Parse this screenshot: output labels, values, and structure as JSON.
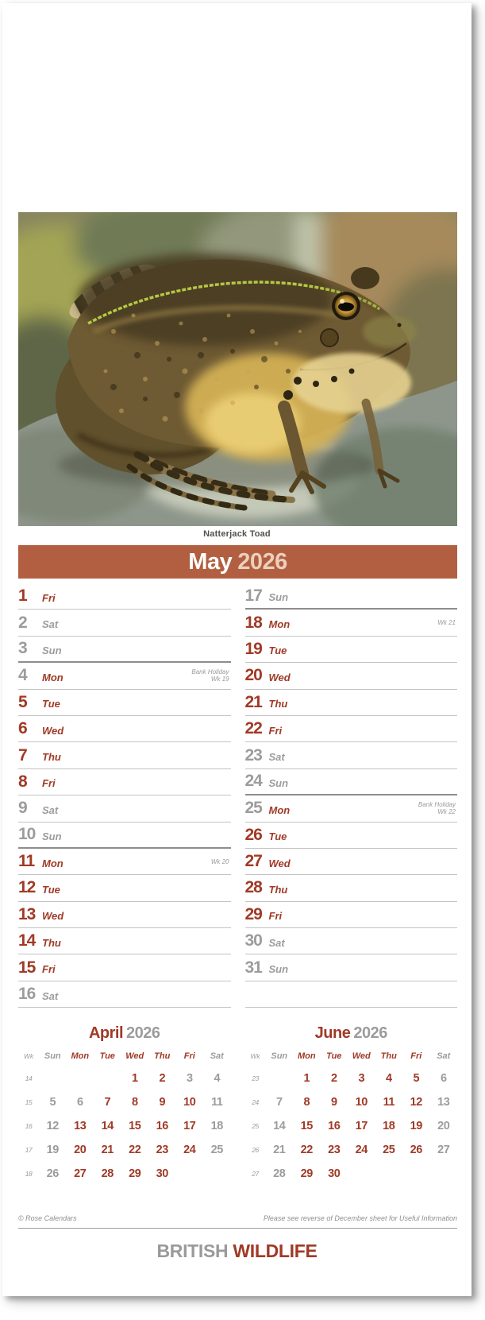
{
  "colors": {
    "bar": "#b25f41",
    "red": "#a03a26",
    "gray": "#9c9c9c",
    "line": "#c3c3c3",
    "line_dark": "#8d8d8d",
    "note": "#9a9a9a",
    "caption": "#51504a",
    "year_on_bar": "#eccfbd",
    "brand_gray": "#9a9a9a",
    "brand_red": "#a03a26"
  },
  "photo": {
    "caption": "Natterjack Toad"
  },
  "header": {
    "month": "May",
    "year": "2026"
  },
  "calendar": {
    "columns": [
      [
        {
          "n": "1",
          "w": "Fri",
          "nc": "red",
          "wc": "red"
        },
        {
          "n": "2",
          "w": "Sat",
          "nc": "gray",
          "wc": "gray"
        },
        {
          "n": "3",
          "w": "Sun",
          "nc": "gray",
          "wc": "gray",
          "sep": true
        },
        {
          "n": "4",
          "w": "Mon",
          "nc": "gray",
          "wc": "red",
          "notes": [
            "Bank Holiday",
            "Wk 19"
          ]
        },
        {
          "n": "5",
          "w": "Tue",
          "nc": "red",
          "wc": "red"
        },
        {
          "n": "6",
          "w": "Wed",
          "nc": "red",
          "wc": "red"
        },
        {
          "n": "7",
          "w": "Thu",
          "nc": "red",
          "wc": "red"
        },
        {
          "n": "8",
          "w": "Fri",
          "nc": "red",
          "wc": "red"
        },
        {
          "n": "9",
          "w": "Sat",
          "nc": "gray",
          "wc": "gray"
        },
        {
          "n": "10",
          "w": "Sun",
          "nc": "gray",
          "wc": "gray",
          "sep": true
        },
        {
          "n": "11",
          "w": "Mon",
          "nc": "red",
          "wc": "red",
          "notes": [
            "Wk 20"
          ]
        },
        {
          "n": "12",
          "w": "Tue",
          "nc": "red",
          "wc": "red"
        },
        {
          "n": "13",
          "w": "Wed",
          "nc": "red",
          "wc": "red"
        },
        {
          "n": "14",
          "w": "Thu",
          "nc": "red",
          "wc": "red"
        },
        {
          "n": "15",
          "w": "Fri",
          "nc": "red",
          "wc": "red"
        },
        {
          "n": "16",
          "w": "Sat",
          "nc": "gray",
          "wc": "gray"
        }
      ],
      [
        {
          "n": "17",
          "w": "Sun",
          "nc": "gray",
          "wc": "gray",
          "sep": true
        },
        {
          "n": "18",
          "w": "Mon",
          "nc": "red",
          "wc": "red",
          "notes": [
            "Wk 21"
          ]
        },
        {
          "n": "19",
          "w": "Tue",
          "nc": "red",
          "wc": "red"
        },
        {
          "n": "20",
          "w": "Wed",
          "nc": "red",
          "wc": "red"
        },
        {
          "n": "21",
          "w": "Thu",
          "nc": "red",
          "wc": "red"
        },
        {
          "n": "22",
          "w": "Fri",
          "nc": "red",
          "wc": "red"
        },
        {
          "n": "23",
          "w": "Sat",
          "nc": "gray",
          "wc": "gray"
        },
        {
          "n": "24",
          "w": "Sun",
          "nc": "gray",
          "wc": "gray",
          "sep": true
        },
        {
          "n": "25",
          "w": "Mon",
          "nc": "gray",
          "wc": "red",
          "notes": [
            "Bank Holiday",
            "Wk 22"
          ]
        },
        {
          "n": "26",
          "w": "Tue",
          "nc": "red",
          "wc": "red"
        },
        {
          "n": "27",
          "w": "Wed",
          "nc": "red",
          "wc": "red"
        },
        {
          "n": "28",
          "w": "Thu",
          "nc": "red",
          "wc": "red"
        },
        {
          "n": "29",
          "w": "Fri",
          "nc": "red",
          "wc": "red"
        },
        {
          "n": "30",
          "w": "Sat",
          "nc": "gray",
          "wc": "gray"
        },
        {
          "n": "31",
          "w": "Sun",
          "nc": "gray",
          "wc": "gray"
        },
        {
          "n": "",
          "w": "",
          "nc": "",
          "wc": ""
        }
      ]
    ]
  },
  "mini_months": [
    {
      "month": "April",
      "year": "2026",
      "wk_header": "Wk",
      "day_headers": [
        {
          "t": "Sun",
          "c": "gray"
        },
        {
          "t": "Mon",
          "c": "red"
        },
        {
          "t": "Tue",
          "c": "red"
        },
        {
          "t": "Wed",
          "c": "red"
        },
        {
          "t": "Thu",
          "c": "red"
        },
        {
          "t": "Fri",
          "c": "red"
        },
        {
          "t": "Sat",
          "c": "gray"
        }
      ],
      "weeks": [
        {
          "wk": "14",
          "cells": [
            {
              "d": "",
              "c": ""
            },
            {
              "d": "",
              "c": ""
            },
            {
              "d": "",
              "c": ""
            },
            {
              "d": "1",
              "c": "red"
            },
            {
              "d": "2",
              "c": "red"
            },
            {
              "d": "3",
              "c": "gray"
            },
            {
              "d": "4",
              "c": "gray"
            }
          ]
        },
        {
          "wk": "15",
          "cells": [
            {
              "d": "5",
              "c": "gray"
            },
            {
              "d": "6",
              "c": "gray"
            },
            {
              "d": "7",
              "c": "red"
            },
            {
              "d": "8",
              "c": "red"
            },
            {
              "d": "9",
              "c": "red"
            },
            {
              "d": "10",
              "c": "red"
            },
            {
              "d": "11",
              "c": "gray"
            }
          ]
        },
        {
          "wk": "16",
          "cells": [
            {
              "d": "12",
              "c": "gray"
            },
            {
              "d": "13",
              "c": "red"
            },
            {
              "d": "14",
              "c": "red"
            },
            {
              "d": "15",
              "c": "red"
            },
            {
              "d": "16",
              "c": "red"
            },
            {
              "d": "17",
              "c": "red"
            },
            {
              "d": "18",
              "c": "gray"
            }
          ]
        },
        {
          "wk": "17",
          "cells": [
            {
              "d": "19",
              "c": "gray"
            },
            {
              "d": "20",
              "c": "red"
            },
            {
              "d": "21",
              "c": "red"
            },
            {
              "d": "22",
              "c": "red"
            },
            {
              "d": "23",
              "c": "red"
            },
            {
              "d": "24",
              "c": "red"
            },
            {
              "d": "25",
              "c": "gray"
            }
          ]
        },
        {
          "wk": "18",
          "cells": [
            {
              "d": "26",
              "c": "gray"
            },
            {
              "d": "27",
              "c": "red"
            },
            {
              "d": "28",
              "c": "red"
            },
            {
              "d": "29",
              "c": "red"
            },
            {
              "d": "30",
              "c": "red"
            },
            {
              "d": "",
              "c": ""
            },
            {
              "d": "",
              "c": ""
            }
          ]
        }
      ]
    },
    {
      "month": "June",
      "year": "2026",
      "wk_header": "Wk",
      "day_headers": [
        {
          "t": "Sun",
          "c": "gray"
        },
        {
          "t": "Mon",
          "c": "red"
        },
        {
          "t": "Tue",
          "c": "red"
        },
        {
          "t": "Wed",
          "c": "red"
        },
        {
          "t": "Thu",
          "c": "red"
        },
        {
          "t": "Fri",
          "c": "red"
        },
        {
          "t": "Sat",
          "c": "gray"
        }
      ],
      "weeks": [
        {
          "wk": "23",
          "cells": [
            {
              "d": "",
              "c": ""
            },
            {
              "d": "1",
              "c": "red"
            },
            {
              "d": "2",
              "c": "red"
            },
            {
              "d": "3",
              "c": "red"
            },
            {
              "d": "4",
              "c": "red"
            },
            {
              "d": "5",
              "c": "red"
            },
            {
              "d": "6",
              "c": "gray"
            }
          ]
        },
        {
          "wk": "24",
          "cells": [
            {
              "d": "7",
              "c": "gray"
            },
            {
              "d": "8",
              "c": "red"
            },
            {
              "d": "9",
              "c": "red"
            },
            {
              "d": "10",
              "c": "red"
            },
            {
              "d": "11",
              "c": "red"
            },
            {
              "d": "12",
              "c": "red"
            },
            {
              "d": "13",
              "c": "gray"
            }
          ]
        },
        {
          "wk": "25",
          "cells": [
            {
              "d": "14",
              "c": "gray"
            },
            {
              "d": "15",
              "c": "red"
            },
            {
              "d": "16",
              "c": "red"
            },
            {
              "d": "17",
              "c": "red"
            },
            {
              "d": "18",
              "c": "red"
            },
            {
              "d": "19",
              "c": "red"
            },
            {
              "d": "20",
              "c": "gray"
            }
          ]
        },
        {
          "wk": "26",
          "cells": [
            {
              "d": "21",
              "c": "gray"
            },
            {
              "d": "22",
              "c": "red"
            },
            {
              "d": "23",
              "c": "red"
            },
            {
              "d": "24",
              "c": "red"
            },
            {
              "d": "25",
              "c": "red"
            },
            {
              "d": "26",
              "c": "red"
            },
            {
              "d": "27",
              "c": "gray"
            }
          ]
        },
        {
          "wk": "27",
          "cells": [
            {
              "d": "28",
              "c": "gray"
            },
            {
              "d": "29",
              "c": "red"
            },
            {
              "d": "30",
              "c": "red"
            },
            {
              "d": "",
              "c": ""
            },
            {
              "d": "",
              "c": ""
            },
            {
              "d": "",
              "c": ""
            },
            {
              "d": "",
              "c": ""
            }
          ]
        }
      ]
    }
  ],
  "footer": {
    "left": "© Rose Calendars",
    "right": "Please see reverse of December sheet for Useful Information"
  },
  "brand": {
    "gray": "BRITISH",
    "red": "WILDLIFE"
  }
}
